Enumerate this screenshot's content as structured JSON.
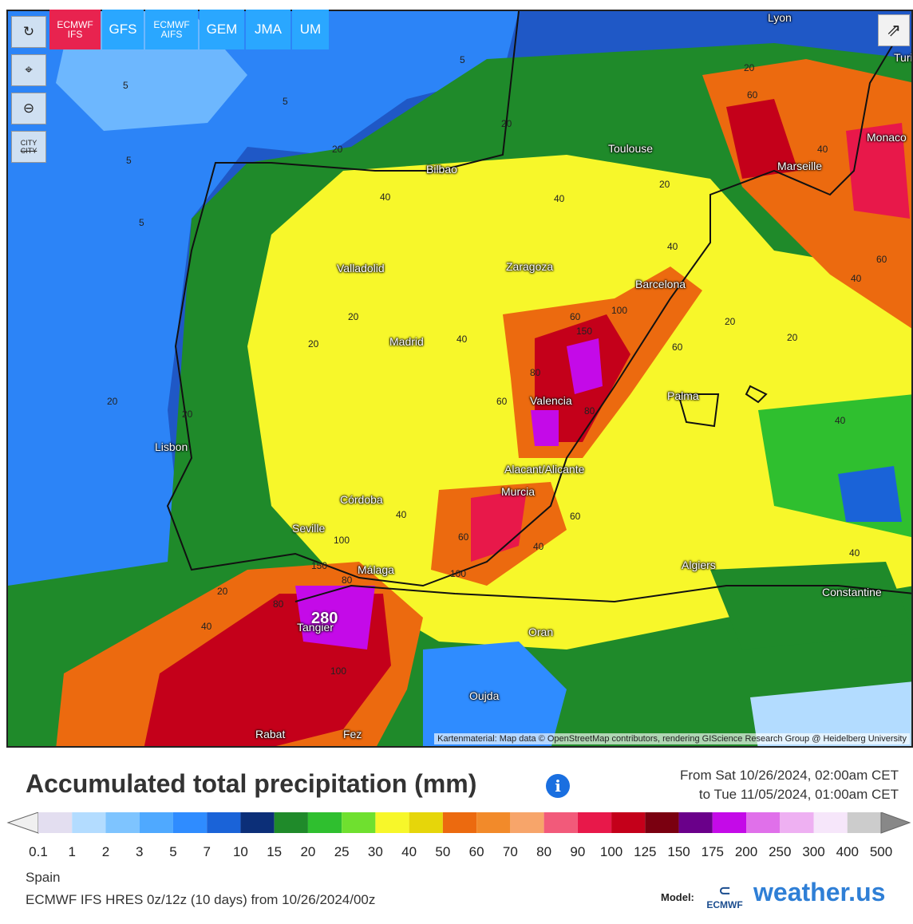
{
  "models": [
    {
      "label": "ECMWF IFS",
      "active": true
    },
    {
      "label": "GFS",
      "active": false
    },
    {
      "label": "ECMWF AIFS",
      "active": false
    },
    {
      "label": "GEM",
      "active": false
    },
    {
      "label": "JMA",
      "active": false
    },
    {
      "label": "UM",
      "active": false
    }
  ],
  "controls": {
    "refresh": "↻",
    "location": "⌖",
    "zoom": "⊖",
    "city_top": "CITY",
    "city_bottom": "CITY",
    "share": "⇗"
  },
  "cities": [
    {
      "name": "Lyon"
    },
    {
      "name": "Turin"
    },
    {
      "name": "Toulouse"
    },
    {
      "name": "Monaco"
    },
    {
      "name": "Marseille"
    },
    {
      "name": "Bilbao"
    },
    {
      "name": "Zaragoza"
    },
    {
      "name": "Valladolid"
    },
    {
      "name": "Barcelona"
    },
    {
      "name": "Madrid"
    },
    {
      "name": "Valencia"
    },
    {
      "name": "Palma"
    },
    {
      "name": "Lisbon"
    },
    {
      "name": "Alacant/Alicante"
    },
    {
      "name": "Murcia"
    },
    {
      "name": "Córdoba"
    },
    {
      "name": "Seville"
    },
    {
      "name": "Málaga"
    },
    {
      "name": "Algiers"
    },
    {
      "name": "Constantine"
    },
    {
      "name": "Tangier"
    },
    {
      "name": "Oran"
    },
    {
      "name": "Oujda"
    },
    {
      "name": "Rabat"
    },
    {
      "name": "Fez"
    }
  ],
  "isolines": [
    "5",
    "5",
    "5",
    "5",
    "5",
    "20",
    "20",
    "20",
    "20",
    "20",
    "20",
    "20",
    "20",
    "20",
    "20",
    "20",
    "40",
    "40",
    "40",
    "40",
    "40",
    "40",
    "40",
    "40",
    "40",
    "40",
    "40",
    "60",
    "60",
    "60",
    "60",
    "60",
    "60",
    "60",
    "80",
    "80",
    "80",
    "80",
    "100",
    "100",
    "100",
    "100",
    "150",
    "150",
    "280"
  ],
  "attribution": "Kartenmaterial: Map data © OpenStreetMap contributors, rendering GIScience Research Group @ Heidelberg University",
  "legend": {
    "title": "Accumulated total precipitation (mm)",
    "from": "From Sat 10/26/2024, 02:00am CET",
    "to": "to Tue 11/05/2024, 01:00am CET",
    "scale": [
      "0.1",
      "1",
      "2",
      "3",
      "5",
      "7",
      "10",
      "15",
      "20",
      "25",
      "30",
      "40",
      "50",
      "60",
      "70",
      "80",
      "90",
      "100",
      "125",
      "150",
      "175",
      "200",
      "250",
      "300",
      "400",
      "500"
    ],
    "colors": [
      "#e3def0",
      "#b3dcff",
      "#7ec4ff",
      "#4fa9ff",
      "#2f8cff",
      "#1a63d8",
      "#0c2f78",
      "#1f8a2a",
      "#2fbf2f",
      "#6fe02f",
      "#f7f72a",
      "#e6d60a",
      "#ec6a0f",
      "#f28a2a",
      "#f7a56a",
      "#f25a7a",
      "#e8184a",
      "#c4001a",
      "#7a0010",
      "#6a008a",
      "#c40ae8",
      "#e070ea",
      "#eeb0f2",
      "#f6e6fa",
      "#cccccc"
    ]
  },
  "region": "Spain",
  "run": "ECMWF IFS HRES 0z/12z (10 days) from 10/26/2024/00z",
  "model_label": "Model:",
  "ecmwf_text": "ECMWF",
  "brand": "weather.us"
}
